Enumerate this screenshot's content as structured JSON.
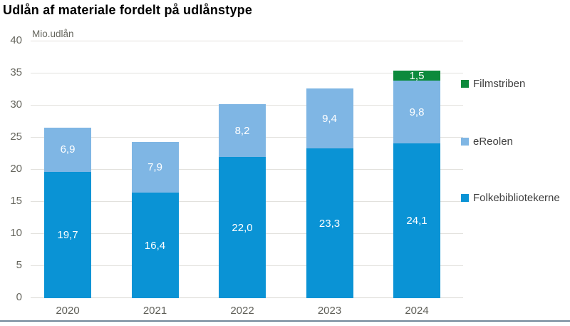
{
  "title": "Udlån af materiale fordelt på udlånstype",
  "chart_data": {
    "type": "bar",
    "stacked": true,
    "title": "Udlån af materiale fordelt på udlånstype",
    "ylabel": "Mio.udlån",
    "xlabel": "",
    "categories": [
      "2020",
      "2021",
      "2022",
      "2023",
      "2024"
    ],
    "series": [
      {
        "name": "Folkebibliotekerne",
        "color": "#0a93d5",
        "values": [
          19.7,
          16.4,
          22.0,
          23.3,
          24.1
        ],
        "value_labels": [
          "19,7",
          "16,4",
          "22,0",
          "23,3",
          "24,1"
        ]
      },
      {
        "name": "eReolen",
        "color": "#7fb6e4",
        "values": [
          6.9,
          7.9,
          8.2,
          9.4,
          9.8
        ],
        "value_labels": [
          "6,9",
          "7,9",
          "8,2",
          "9,4",
          "9,8"
        ]
      },
      {
        "name": "Filmstriben",
        "color": "#0c8a3c",
        "values": [
          0,
          0,
          0,
          0,
          1.5
        ],
        "value_labels": [
          "",
          "",
          "",
          "",
          "1,5"
        ]
      }
    ],
    "ylim": [
      0,
      40
    ],
    "yticks": [
      0,
      5,
      10,
      15,
      20,
      25,
      30,
      35,
      40
    ],
    "grid": true,
    "legend_position": "right",
    "legend_order_top_to_bottom": [
      "Filmstriben",
      "eReolen",
      "Folkebibliotekerne"
    ]
  },
  "colors": {
    "bar_label_text": "#ffffff",
    "axis_text": "#66665e",
    "gridline": "#e2e1dd",
    "bottom_rule": "#72889a",
    "background": "#ffffff"
  }
}
